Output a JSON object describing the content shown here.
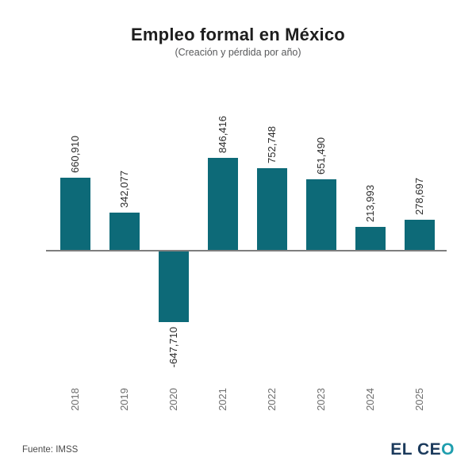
{
  "header": {
    "title": "Empleo formal en México",
    "subtitle": "(Creación y pérdida por año)"
  },
  "chart_data": {
    "type": "bar",
    "title": "Empleo formal en México",
    "subtitle": "(Creación y pérdida por año)",
    "categories": [
      "2018",
      "2019",
      "2020",
      "2021",
      "2022",
      "2023",
      "2024",
      "2025"
    ],
    "values": [
      660910,
      342077,
      -647710,
      846416,
      752748,
      651490,
      213993,
      278697
    ],
    "value_labels": [
      "660,910",
      "342,077",
      "-647,710",
      "846,416",
      "752,748",
      "651,490",
      "213,993",
      "278,697"
    ],
    "xlabel": "",
    "ylabel": "",
    "ylim": [
      -700000,
      900000
    ],
    "grid": false,
    "legend": false,
    "bar_color": "#0d6a78",
    "axis_color": "#7e7e7e",
    "value_label_color": "#2b2b2b",
    "tick_label_color": "#6e6e6e"
  },
  "footer": {
    "source": "Fuente: IMSS",
    "logo": {
      "primary": "EL CE",
      "accent": "O",
      "primary_color": "#1b3a5c",
      "accent_color": "#1f9eae"
    }
  }
}
